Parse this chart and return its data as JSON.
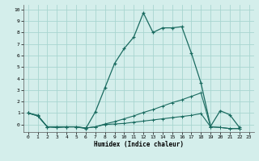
{
  "xlabel": "Humidex (Indice chaleur)",
  "bg_color": "#d4eeeb",
  "grid_color": "#a8d5d0",
  "line_color": "#1a6b60",
  "xlim": [
    -0.5,
    23.5
  ],
  "ylim": [
    -0.65,
    10.4
  ],
  "xticks": [
    0,
    1,
    2,
    3,
    4,
    5,
    6,
    7,
    8,
    9,
    10,
    11,
    12,
    13,
    14,
    15,
    16,
    17,
    18,
    19,
    20,
    21,
    22,
    23
  ],
  "yticks": [
    0,
    1,
    2,
    3,
    4,
    5,
    6,
    7,
    8,
    9,
    10
  ],
  "line1_x": [
    0,
    1,
    2,
    3,
    4,
    5,
    6,
    7,
    8,
    9,
    10,
    11,
    12,
    13,
    14,
    15,
    16,
    17,
    18,
    19,
    20,
    21,
    22
  ],
  "line1_y": [
    1.0,
    0.8,
    -0.2,
    -0.2,
    -0.2,
    -0.2,
    -0.35,
    1.1,
    3.2,
    5.3,
    6.6,
    7.6,
    9.7,
    8.0,
    8.4,
    8.4,
    8.5,
    6.2,
    3.6,
    -0.15,
    1.2,
    0.85,
    -0.25
  ],
  "line2_x": [
    0,
    1,
    2,
    3,
    4,
    5,
    6,
    7,
    8,
    9,
    10,
    11,
    12,
    13,
    14,
    15,
    16,
    17,
    18,
    19,
    20,
    21,
    22
  ],
  "line2_y": [
    1.0,
    0.75,
    -0.2,
    -0.25,
    -0.2,
    -0.2,
    -0.3,
    -0.2,
    0.05,
    0.25,
    0.5,
    0.75,
    1.05,
    1.3,
    1.6,
    1.9,
    2.15,
    2.45,
    2.75,
    -0.2,
    -0.25,
    -0.35,
    -0.35
  ],
  "line3_x": [
    0,
    1,
    2,
    3,
    4,
    5,
    6,
    7,
    8,
    9,
    10,
    11,
    12,
    13,
    14,
    15,
    16,
    17,
    18,
    19,
    20,
    21,
    22
  ],
  "line3_y": [
    1.0,
    0.75,
    -0.2,
    -0.25,
    -0.2,
    -0.2,
    -0.3,
    -0.2,
    0.0,
    0.05,
    0.1,
    0.2,
    0.3,
    0.4,
    0.5,
    0.6,
    0.7,
    0.8,
    0.95,
    -0.2,
    -0.25,
    -0.35,
    -0.35
  ]
}
